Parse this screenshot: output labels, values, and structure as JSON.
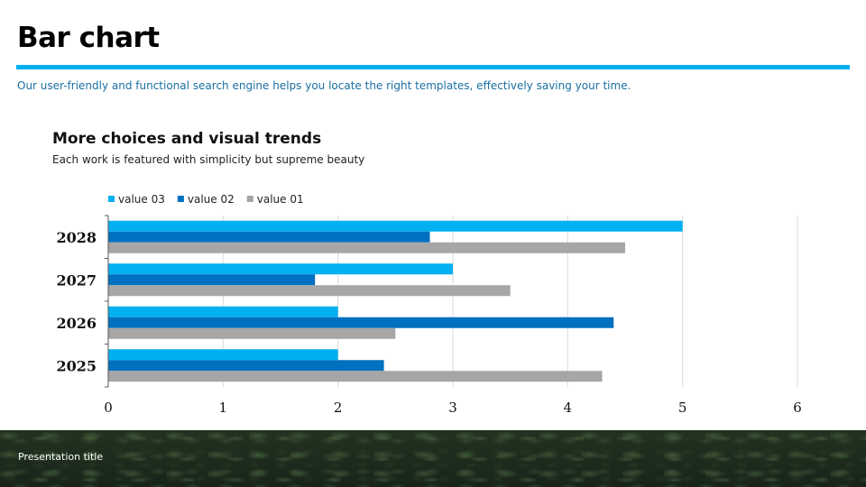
{
  "slide": {
    "title": "Bar chart",
    "subtitle": "Our user-friendly and functional search engine helps you locate the right templates, effectively saving your time.",
    "footer_text": "Presentation title",
    "accent_color": "#00b0f0"
  },
  "chart_data": {
    "type": "bar",
    "orientation": "horizontal",
    "title": "More choices and visual trends",
    "subtitle": "Each work is featured with simplicity but supreme beauty",
    "categories": [
      "2025",
      "2026",
      "2027",
      "2028"
    ],
    "series": [
      {
        "name": "value 03",
        "color": "#00b0f0",
        "values": [
          2,
          2,
          3,
          5
        ]
      },
      {
        "name": "value 02",
        "color": "#0070c0",
        "values": [
          2.4,
          4.4,
          1.8,
          2.8
        ]
      },
      {
        "name": "value 01",
        "color": "#a6a6a6",
        "values": [
          4.3,
          2.5,
          3.5,
          4.5
        ]
      }
    ],
    "xlim": [
      0,
      6
    ],
    "xticks": [
      "0",
      "1",
      "2",
      "3",
      "4",
      "5",
      "6"
    ],
    "grid": true,
    "legend": "top-left"
  }
}
